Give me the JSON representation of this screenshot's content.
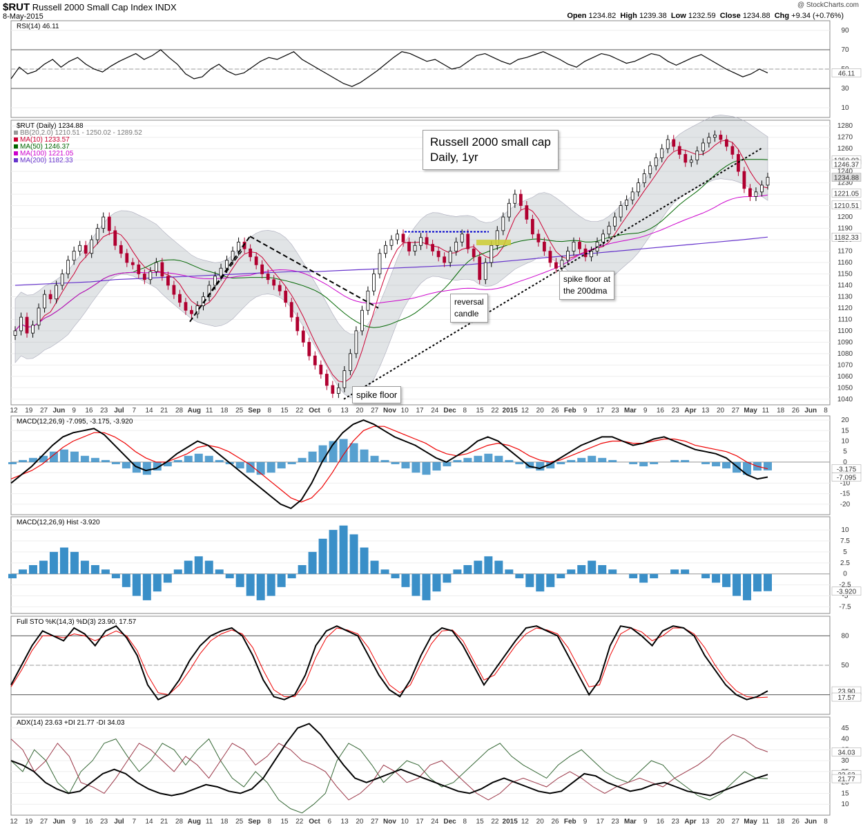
{
  "header": {
    "symbol": "$RUT",
    "name": "Russell 2000 Small Cap Index",
    "exchange": "INDX",
    "date": "8-May-2015",
    "credit": "@ StockCharts.com",
    "open_label": "Open",
    "open": "1234.82",
    "high_label": "High",
    "high": "1239.38",
    "low_label": "Low",
    "low": "1232.59",
    "close_label": "Close",
    "close": "1234.88",
    "chg_label": "Chg",
    "chg": "+9.34 (+0.76%)"
  },
  "annotations": {
    "title_box_line1": "Russell 2000 small cap",
    "title_box_line2": "Daily, 1yr",
    "reversal_line1": "reversal",
    "reversal_line2": "candle",
    "spike_floor": "spike floor",
    "spike_floor_200_line1": "spike floor at",
    "spike_floor_200_line2": "the 200dma"
  },
  "chart_data": [
    {
      "type": "line",
      "panel": "RSI",
      "title": "RSI(14) 46.11",
      "ylim": [
        0,
        100
      ],
      "yticks": [
        10,
        30,
        50,
        70,
        90
      ],
      "reference_lines": [
        30,
        70
      ],
      "last_label": "46.11",
      "series": [
        {
          "name": "RSI(14)",
          "values": [
            40,
            52,
            45,
            48,
            55,
            60,
            52,
            58,
            62,
            55,
            50,
            47,
            53,
            58,
            62,
            66,
            60,
            64,
            70,
            62,
            55,
            45,
            40,
            42,
            50,
            55,
            48,
            44,
            46,
            52,
            58,
            62,
            60,
            64,
            68,
            60,
            55,
            50,
            45,
            40,
            35,
            32,
            36,
            42,
            48,
            55,
            62,
            68,
            66,
            62,
            58,
            60,
            55,
            50,
            52,
            58,
            64,
            66,
            62,
            58,
            55,
            60,
            62,
            65,
            68,
            64,
            60,
            55,
            52,
            58,
            62,
            66,
            64,
            60,
            56,
            58,
            62,
            66,
            64,
            58,
            54,
            58,
            62,
            65,
            60,
            55,
            50,
            46,
            42,
            45,
            50,
            46
          ]
        }
      ]
    },
    {
      "type": "candlestick",
      "panel": "Price",
      "title": "$RUT (Daily) 1234.88",
      "ylim": [
        1035,
        1285
      ],
      "yticks": [
        1040,
        1050,
        1060,
        1070,
        1080,
        1090,
        1100,
        1110,
        1120,
        1130,
        1140,
        1150,
        1160,
        1170,
        1180,
        1190,
        1200,
        1210,
        1220,
        1230,
        1240,
        1250,
        1260,
        1270,
        1280
      ],
      "legend": [
        {
          "label": "BB(20,2.0) 1210.51 - 1250.02 - 1289.52",
          "color": "#999999"
        },
        {
          "label": "MA(10) 1233.57",
          "color": "#cc0033"
        },
        {
          "label": "MA(50) 1246.37",
          "color": "#006600"
        },
        {
          "label": "MA(100) 1221.05",
          "color": "#cc00cc"
        },
        {
          "label": "MA(200) 1182.33",
          "color": "#6633cc"
        }
      ],
      "x_labels": [
        "12",
        "19",
        "27",
        "Jun",
        "9",
        "16",
        "23",
        "Jul",
        "7",
        "14",
        "21",
        "28",
        "Aug",
        "11",
        "18",
        "25",
        "Sep",
        "8",
        "15",
        "22",
        "Oct",
        "6",
        "13",
        "20",
        "27",
        "Nov",
        "10",
        "17",
        "24",
        "Dec",
        "8",
        "15",
        "22",
        "2015",
        "12",
        "20",
        "26",
        "Feb",
        "9",
        "17",
        "23",
        "Mar",
        "9",
        "16",
        "23",
        "Apr",
        "13",
        "20",
        "27",
        "May",
        "11",
        "18",
        "26",
        "Jun",
        "8"
      ],
      "right_labels": [
        "1250.02",
        "1246.37",
        "1234.88",
        "1221.05",
        "1210.51",
        "1182.33"
      ],
      "closes": [
        1100,
        1112,
        1098,
        1105,
        1120,
        1132,
        1128,
        1140,
        1150,
        1162,
        1170,
        1175,
        1168,
        1180,
        1190,
        1200,
        1188,
        1175,
        1168,
        1160,
        1158,
        1150,
        1145,
        1152,
        1160,
        1148,
        1140,
        1132,
        1125,
        1118,
        1115,
        1122,
        1130,
        1140,
        1148,
        1155,
        1162,
        1170,
        1178,
        1172,
        1165,
        1158,
        1150,
        1145,
        1140,
        1135,
        1125,
        1112,
        1100,
        1090,
        1078,
        1070,
        1062,
        1052,
        1045,
        1050,
        1065,
        1080,
        1100,
        1118,
        1135,
        1150,
        1168,
        1175,
        1180,
        1185,
        1178,
        1170,
        1175,
        1182,
        1176,
        1170,
        1165,
        1160,
        1170,
        1178,
        1185,
        1172,
        1165,
        1145,
        1160,
        1175,
        1188,
        1200,
        1212,
        1220,
        1210,
        1198,
        1185,
        1178,
        1170,
        1160,
        1155,
        1162,
        1170,
        1178,
        1172,
        1165,
        1170,
        1178,
        1185,
        1192,
        1200,
        1210,
        1215,
        1222,
        1230,
        1238,
        1245,
        1252,
        1260,
        1268,
        1262,
        1255,
        1248,
        1250,
        1258,
        1265,
        1270,
        1272,
        1268,
        1262,
        1255,
        1240,
        1225,
        1218,
        1222,
        1228,
        1234.88
      ],
      "ma200": [
        1140,
        1141,
        1142,
        1143,
        1145,
        1146,
        1147,
        1148,
        1149,
        1150,
        1151,
        1152,
        1152,
        1153,
        1154,
        1155,
        1156,
        1157,
        1158,
        1160,
        1162,
        1164,
        1166,
        1168,
        1170,
        1172,
        1174,
        1176,
        1178,
        1180,
        1182.33
      ]
    },
    {
      "type": "line",
      "panel": "MACD",
      "title": "MACD(12,26,9) -7.095, -3.175, -3.920",
      "ylim": [
        -25,
        22
      ],
      "yticks": [
        -20,
        -15,
        -10,
        -5,
        0,
        5,
        10,
        15,
        20
      ],
      "right_labels": [
        "-3.175",
        "-7.095"
      ],
      "series": [
        {
          "name": "MACD",
          "values": [
            -10,
            -6,
            -2,
            3,
            8,
            12,
            14,
            15,
            16,
            13,
            8,
            3,
            -2,
            -4,
            -3,
            0,
            4,
            7,
            10,
            8,
            4,
            0,
            -4,
            -8,
            -12,
            -16,
            -20,
            -22,
            -18,
            -10,
            0,
            8,
            14,
            18,
            20,
            18,
            15,
            12,
            10,
            8,
            5,
            2,
            0,
            3,
            6,
            10,
            12,
            10,
            6,
            2,
            -2,
            -3,
            -1,
            2,
            5,
            8,
            10,
            12,
            12,
            10,
            8,
            9,
            11,
            12,
            10,
            8,
            6,
            5,
            4,
            2,
            -2,
            -6,
            -8,
            -7.095
          ]
        },
        {
          "name": "Signal",
          "values": [
            -8,
            -6,
            -4,
            -1,
            3,
            7,
            10,
            12,
            14,
            14,
            12,
            9,
            5,
            2,
            0,
            0,
            2,
            4,
            7,
            8,
            7,
            5,
            2,
            -1,
            -5,
            -9,
            -13,
            -17,
            -19,
            -17,
            -12,
            -5,
            3,
            10,
            15,
            17,
            17,
            15,
            13,
            11,
            9,
            6,
            4,
            3,
            4,
            6,
            8,
            9,
            8,
            6,
            3,
            1,
            0,
            1,
            3,
            5,
            7,
            9,
            10,
            10,
            9,
            9,
            10,
            11,
            11,
            10,
            8,
            7,
            6,
            5,
            3,
            0,
            -2,
            -3.175
          ]
        }
      ]
    },
    {
      "type": "bar",
      "panel": "MACD Histogram",
      "title": "MACD(12,26,9) Hist -3.920",
      "ylim": [
        -9,
        13
      ],
      "yticks": [
        -7.5,
        -5.0,
        -2.5,
        0.0,
        2.5,
        5.0,
        7.5,
        10.0
      ],
      "last_label": "-3.920",
      "values": [
        -1,
        1,
        2,
        3,
        5,
        6,
        5,
        3,
        2,
        1,
        -1,
        -3,
        -5,
        -6,
        -4,
        -2,
        1,
        3,
        4,
        3,
        1,
        -1,
        -3,
        -5,
        -6,
        -5,
        -3,
        -1,
        2,
        5,
        8,
        10,
        11,
        9,
        6,
        3,
        1,
        -1,
        -3,
        -5,
        -6,
        -4,
        -2,
        1,
        2,
        3,
        4,
        3,
        1,
        -1,
        -3,
        -4,
        -3,
        -1,
        1,
        2,
        3,
        2,
        1,
        0,
        -1,
        -2,
        -1,
        0,
        1,
        1,
        0,
        -1,
        -2,
        -3,
        -5,
        -6,
        -4,
        -3.92
      ]
    },
    {
      "type": "line",
      "panel": "Full Stochastics",
      "title": "Full STO %K(14,3) %D(3) 23.90, 17.57",
      "ylim": [
        0,
        100
      ],
      "yticks": [
        20,
        50,
        80
      ],
      "right_labels": [
        "23.90",
        "17.57"
      ],
      "series": [
        {
          "name": "%K",
          "values": [
            30,
            50,
            70,
            85,
            80,
            75,
            88,
            82,
            70,
            85,
            90,
            78,
            60,
            30,
            15,
            20,
            35,
            55,
            70,
            80,
            85,
            88,
            80,
            60,
            35,
            18,
            15,
            20,
            40,
            70,
            85,
            90,
            85,
            80,
            60,
            40,
            25,
            18,
            35,
            60,
            80,
            88,
            85,
            70,
            50,
            30,
            45,
            60,
            75,
            88,
            90,
            85,
            80,
            60,
            40,
            20,
            35,
            70,
            90,
            88,
            80,
            70,
            85,
            90,
            88,
            80,
            60,
            45,
            30,
            20,
            15,
            18,
            23.9
          ]
        },
        {
          "name": "%D",
          "values": [
            28,
            45,
            65,
            80,
            80,
            78,
            82,
            80,
            75,
            80,
            85,
            80,
            65,
            40,
            22,
            20,
            30,
            45,
            62,
            75,
            82,
            86,
            82,
            68,
            45,
            25,
            18,
            18,
            32,
            58,
            78,
            88,
            86,
            82,
            68,
            48,
            30,
            22,
            30,
            52,
            72,
            85,
            86,
            75,
            55,
            35,
            40,
            55,
            70,
            82,
            88,
            86,
            82,
            68,
            48,
            28,
            30,
            60,
            82,
            88,
            84,
            75,
            80,
            88,
            88,
            82,
            68,
            50,
            35,
            24,
            18,
            17,
            17.57
          ]
        }
      ]
    },
    {
      "type": "line",
      "panel": "ADX",
      "title": "ADX(14) 23.63 +DI 21.77 -DI 34.03",
      "ylim": [
        5,
        50
      ],
      "yticks": [
        10,
        15,
        20,
        25,
        30,
        35,
        40,
        45
      ],
      "right_labels": [
        "34.03",
        "23.63",
        "21.77"
      ],
      "series": [
        {
          "name": "ADX",
          "values": [
            30,
            28,
            25,
            20,
            17,
            15,
            16,
            20,
            24,
            26,
            24,
            20,
            17,
            15,
            14,
            15,
            17,
            19,
            18,
            16,
            15,
            17,
            22,
            30,
            38,
            45,
            47,
            42,
            35,
            28,
            22,
            20,
            22,
            24,
            26,
            24,
            22,
            20,
            18,
            16,
            15,
            17,
            20,
            22,
            20,
            18,
            16,
            15,
            16,
            20,
            24,
            23,
            20,
            18,
            16,
            17,
            19,
            20,
            18,
            16,
            15,
            14,
            16,
            18,
            20,
            22,
            23.63
          ]
        },
        {
          "name": "+DI",
          "values": [
            30,
            25,
            35,
            30,
            20,
            15,
            25,
            30,
            38,
            40,
            32,
            25,
            30,
            38,
            35,
            28,
            35,
            40,
            30,
            22,
            18,
            25,
            20,
            12,
            8,
            6,
            10,
            15,
            30,
            38,
            35,
            28,
            20,
            25,
            30,
            28,
            22,
            18,
            20,
            25,
            30,
            35,
            38,
            32,
            28,
            25,
            22,
            28,
            32,
            35,
            30,
            25,
            22,
            20,
            25,
            30,
            28,
            22,
            18,
            14,
            12,
            15,
            20,
            25,
            22,
            21.77
          ]
        },
        {
          "name": "-DI",
          "values": [
            40,
            35,
            25,
            30,
            38,
            32,
            20,
            18,
            15,
            22,
            30,
            38,
            35,
            30,
            25,
            32,
            28,
            22,
            30,
            38,
            35,
            28,
            32,
            38,
            35,
            30,
            28,
            25,
            18,
            12,
            15,
            20,
            28,
            25,
            20,
            22,
            28,
            30,
            25,
            20,
            15,
            12,
            15,
            20,
            22,
            20,
            18,
            22,
            25,
            22,
            18,
            15,
            18,
            20,
            22,
            20,
            18,
            22,
            25,
            28,
            32,
            38,
            42,
            40,
            36,
            34.03
          ]
        }
      ]
    }
  ]
}
